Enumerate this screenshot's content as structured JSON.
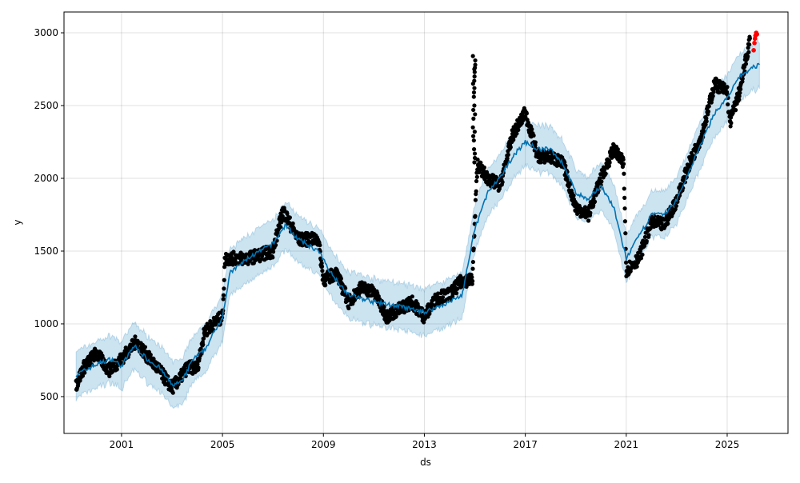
{
  "chart_data": {
    "type": "line",
    "title": "",
    "xlabel": "ds",
    "ylabel": "y",
    "xlim": [
      1998.72,
      2027.41
    ],
    "ylim": [
      247,
      3143
    ],
    "grid": true,
    "xticks": [
      2001,
      2005,
      2009,
      2013,
      2017,
      2021,
      2025
    ],
    "yticks": [
      500,
      1000,
      1500,
      2000,
      2500,
      3000
    ],
    "colors": {
      "forecast": "#0072B2",
      "band": "#0072B2",
      "observed": "#000000",
      "future_actual": "#ff0000"
    },
    "band_halfwidth": 160,
    "forecast": [
      [
        1999.2,
        650
      ],
      [
        2000,
        720
      ],
      [
        2000.6,
        760
      ],
      [
        2001,
        710
      ],
      [
        2001.5,
        850
      ],
      [
        2002,
        760
      ],
      [
        2002.5,
        700
      ],
      [
        2003,
        580
      ],
      [
        2003.4,
        600
      ],
      [
        2003.8,
        750
      ],
      [
        2004.3,
        820
      ],
      [
        2005,
        1050
      ],
      [
        2005.3,
        1350
      ],
      [
        2006,
        1450
      ],
      [
        2007,
        1550
      ],
      [
        2007.5,
        1680
      ],
      [
        2008,
        1580
      ],
      [
        2008.8,
        1500
      ],
      [
        2009.3,
        1350
      ],
      [
        2010,
        1200
      ],
      [
        2011,
        1150
      ],
      [
        2012,
        1120
      ],
      [
        2013,
        1080
      ],
      [
        2014,
        1150
      ],
      [
        2014.5,
        1200
      ],
      [
        2015,
        1650
      ],
      [
        2015.5,
        1900
      ],
      [
        2016,
        2000
      ],
      [
        2016.5,
        2150
      ],
      [
        2017,
        2250
      ],
      [
        2017.5,
        2200
      ],
      [
        2018,
        2200
      ],
      [
        2018.5,
        2100
      ],
      [
        2019,
        1900
      ],
      [
        2019.5,
        1850
      ],
      [
        2020,
        1950
      ],
      [
        2020.5,
        1800
      ],
      [
        2021,
        1450
      ],
      [
        2021.5,
        1600
      ],
      [
        2022,
        1750
      ],
      [
        2022.5,
        1750
      ],
      [
        2023,
        1850
      ],
      [
        2023.5,
        2050
      ],
      [
        2024,
        2250
      ],
      [
        2024.5,
        2450
      ],
      [
        2025,
        2550
      ],
      [
        2025.5,
        2700
      ],
      [
        2026,
        2760
      ],
      [
        2026.3,
        2780
      ]
    ],
    "observed": [
      [
        1999.2,
        580
      ],
      [
        1999.5,
        700
      ],
      [
        2000,
        800
      ],
      [
        2000.5,
        680
      ],
      [
        2001,
        760
      ],
      [
        2001.6,
        880
      ],
      [
        2002,
        780
      ],
      [
        2002.5,
        680
      ],
      [
        2003,
        560
      ],
      [
        2003.3,
        620
      ],
      [
        2003.6,
        700
      ],
      [
        2004,
        700
      ],
      [
        2004.3,
        950
      ],
      [
        2005,
        1050
      ],
      [
        2005.1,
        1450
      ],
      [
        2006,
        1450
      ],
      [
        2007,
        1500
      ],
      [
        2007.4,
        1780
      ],
      [
        2008,
        1580
      ],
      [
        2008.8,
        1580
      ],
      [
        2009,
        1300
      ],
      [
        2009.5,
        1350
      ],
      [
        2010,
        1150
      ],
      [
        2010.5,
        1250
      ],
      [
        2011,
        1220
      ],
      [
        2011.5,
        1050
      ],
      [
        2012,
        1100
      ],
      [
        2012.5,
        1150
      ],
      [
        2013,
        1050
      ],
      [
        2013.5,
        1180
      ],
      [
        2014,
        1200
      ],
      [
        2014.5,
        1300
      ],
      [
        2014.9,
        1300
      ],
      [
        2015.1,
        2100
      ],
      [
        2015.5,
        2000
      ],
      [
        2016,
        1950
      ],
      [
        2016.5,
        2300
      ],
      [
        2017,
        2450
      ],
      [
        2017.5,
        2150
      ],
      [
        2018,
        2150
      ],
      [
        2018.5,
        2100
      ],
      [
        2019,
        1800
      ],
      [
        2019.5,
        1750
      ],
      [
        2020,
        2000
      ],
      [
        2020.5,
        2200
      ],
      [
        2020.9,
        2100
      ],
      [
        2021,
        1370
      ],
      [
        2021.5,
        1450
      ],
      [
        2022,
        1700
      ],
      [
        2022.5,
        1680
      ],
      [
        2023,
        1850
      ],
      [
        2023.5,
        2100
      ],
      [
        2024,
        2300
      ],
      [
        2024.5,
        2650
      ],
      [
        2025,
        2600
      ],
      [
        2025.1,
        2380
      ],
      [
        2025.5,
        2600
      ],
      [
        2025.9,
        2950
      ]
    ],
    "spike": [
      [
        2014.97,
        2200
      ],
      [
        2014.97,
        2350
      ],
      [
        2014.97,
        2500
      ],
      [
        2014.97,
        2650
      ],
      [
        2014.97,
        2760
      ],
      [
        2014.97,
        2840
      ]
    ],
    "future_actual": [
      [
        2026.05,
        2880
      ],
      [
        2026.08,
        2930
      ],
      [
        2026.1,
        2960
      ],
      [
        2026.12,
        2980
      ],
      [
        2026.15,
        3000
      ],
      [
        2026.18,
        2990
      ]
    ]
  }
}
